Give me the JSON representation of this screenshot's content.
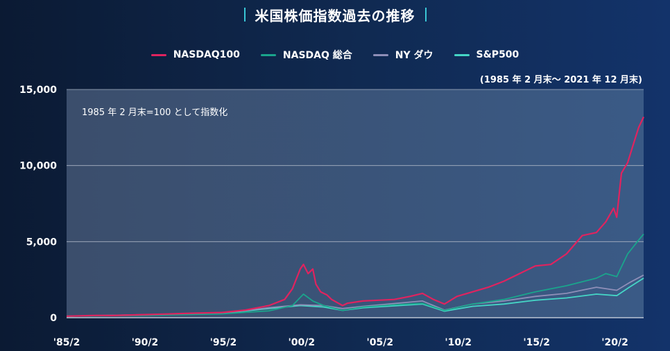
{
  "title": "米国株価指数過去の推移",
  "period_note": "(1985 年 2 月末～ 2021 年 12 月末)",
  "chart_data": {
    "type": "line",
    "annotation": "1985 年 2 月末=100 として指数化",
    "x_ticks": [
      1985.083,
      1990.083,
      1995.083,
      2000.083,
      2005.083,
      2010.083,
      2015.083,
      2020.083
    ],
    "x_tick_labels": [
      "'85/2",
      "'90/2",
      "'95/2",
      "'00/2",
      "'05/2",
      "'10/2",
      "'15/2",
      "'20/2"
    ],
    "xlim": [
      1985.083,
      2021.917
    ],
    "ylim": [
      0,
      15000
    ],
    "y_ticks": [
      0,
      5000,
      10000,
      15000
    ],
    "y_tick_labels": [
      "0",
      "5,000",
      "10,000",
      "15,000"
    ],
    "grid": true,
    "legend_position": "top-center",
    "series": [
      {
        "name": "NASDAQ100",
        "color": "#e0235f",
        "x": [
          1985.083,
          1987.0,
          1988.0,
          1990.0,
          1991.5,
          1993.0,
          1995.0,
          1996.5,
          1998.0,
          1999.0,
          1999.5,
          2000.0,
          2000.2,
          2000.5,
          2000.8,
          2001.0,
          2001.3,
          2001.7,
          2002.0,
          2002.7,
          2003.0,
          2004.0,
          2005.0,
          2006.0,
          2007.0,
          2007.8,
          2008.5,
          2009.2,
          2010.0,
          2011.0,
          2012.0,
          2013.0,
          2014.0,
          2015.0,
          2016.0,
          2017.0,
          2018.0,
          2018.9,
          2019.5,
          2020.0,
          2020.2,
          2020.5,
          2020.9,
          2021.2,
          2021.6,
          2021.917
        ],
        "y": [
          100,
          150,
          140,
          200,
          240,
          290,
          340,
          500,
          800,
          1200,
          1900,
          3200,
          3500,
          2900,
          3200,
          2200,
          1700,
          1500,
          1200,
          800,
          950,
          1100,
          1150,
          1200,
          1400,
          1600,
          1200,
          900,
          1400,
          1700,
          2000,
          2400,
          2900,
          3400,
          3500,
          4200,
          5400,
          5600,
          6300,
          7200,
          6600,
          9500,
          10200,
          11200,
          12500,
          13200
        ]
      },
      {
        "name": "NASDAQ 総合",
        "color": "#1aa58c",
        "x": [
          1985.083,
          1990.0,
          1995.0,
          1998.0,
          1999.5,
          2000.2,
          2000.8,
          2001.5,
          2002.7,
          2004.0,
          2006.0,
          2007.8,
          2009.2,
          2011.0,
          2013.0,
          2015.0,
          2017.0,
          2018.9,
          2019.5,
          2020.2,
          2020.9,
          2021.6,
          2021.917
        ],
        "y": [
          100,
          150,
          250,
          450,
          800,
          1550,
          1100,
          800,
          480,
          700,
          850,
          950,
          480,
          900,
          1200,
          1700,
          2100,
          2600,
          2900,
          2700,
          4200,
          5100,
          5500
        ]
      },
      {
        "name": "NY ダウ",
        "color": "#8f8fb8",
        "x": [
          1985.083,
          1990.0,
          1995.0,
          1998.0,
          2000.0,
          2001.5,
          2002.7,
          2004.0,
          2007.8,
          2009.2,
          2011.0,
          2013.0,
          2015.0,
          2017.0,
          2018.9,
          2020.2,
          2021.0,
          2021.917
        ],
        "y": [
          100,
          200,
          300,
          650,
          850,
          800,
          600,
          750,
          1100,
          500,
          900,
          1100,
          1400,
          1600,
          2000,
          1800,
          2300,
          2800
        ]
      },
      {
        "name": "S&P500",
        "color": "#45d6c6",
        "x": [
          1985.083,
          1990.0,
          1995.0,
          1998.0,
          2000.0,
          2001.5,
          2002.7,
          2004.0,
          2007.8,
          2009.2,
          2011.0,
          2013.0,
          2015.0,
          2017.0,
          2018.9,
          2020.2,
          2021.0,
          2021.917
        ],
        "y": [
          100,
          190,
          280,
          600,
          800,
          700,
          480,
          650,
          900,
          430,
          750,
          900,
          1150,
          1300,
          1550,
          1450,
          2000,
          2600
        ]
      }
    ]
  }
}
